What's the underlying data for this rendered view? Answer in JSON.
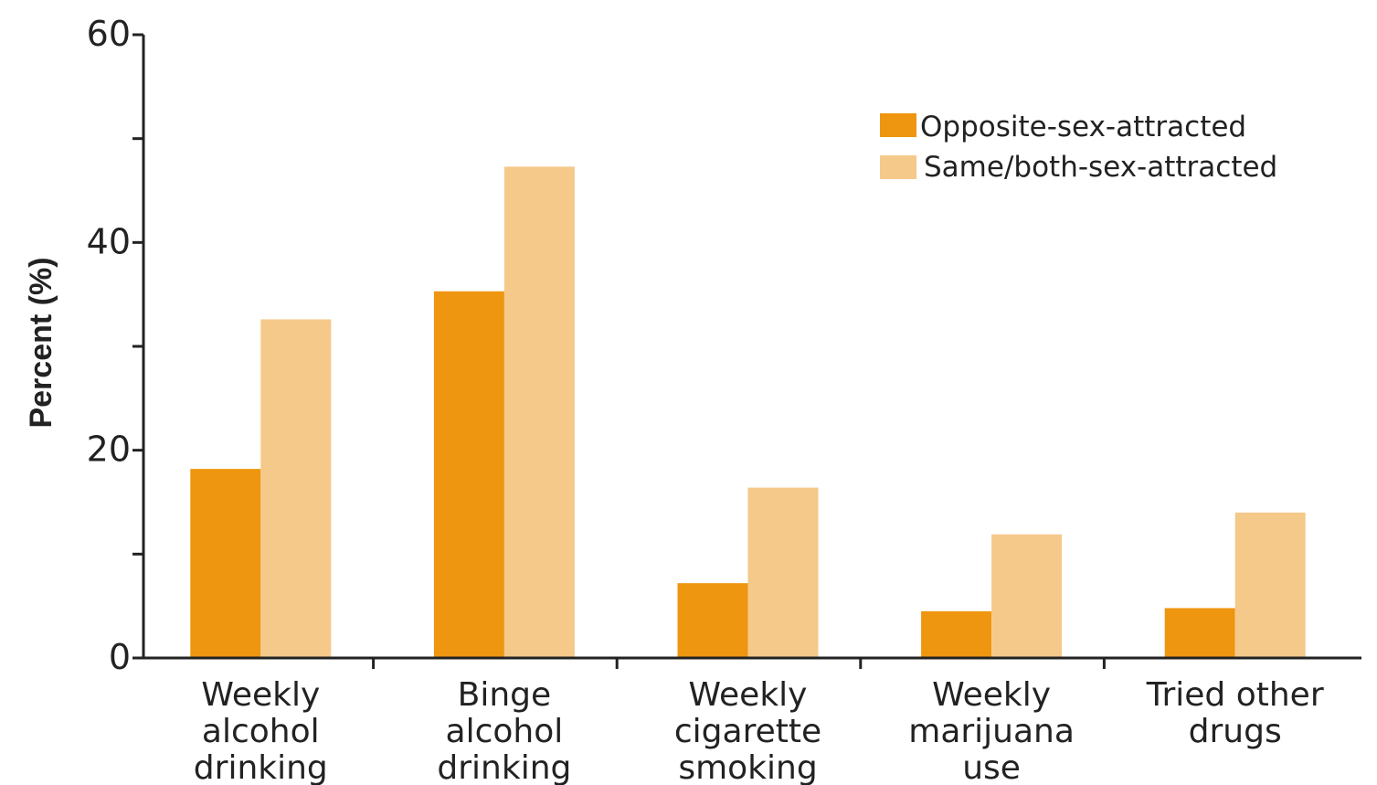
{
  "chart_data": {
    "type": "bar",
    "title": "",
    "xlabel": "",
    "ylabel": "Percent (%)",
    "ylim": [
      0,
      60
    ],
    "yticks": [
      0,
      20,
      40,
      60
    ],
    "ytick_labels": [
      "0",
      "20",
      "40",
      "60"
    ],
    "grid": false,
    "legend_position": "top-right",
    "categories": [
      [
        "Weekly",
        "alcohol",
        "drinking"
      ],
      [
        "Binge",
        "alcohol",
        "drinking"
      ],
      [
        "Weekly",
        "cigarette",
        "smoking"
      ],
      [
        "Weekly",
        "marijuana",
        "use"
      ],
      [
        "Tried other",
        "drugs"
      ]
    ],
    "series": [
      {
        "name": "Opposite-sex-attracted",
        "color": "#EE960F",
        "values": [
          18.2,
          35.3,
          7.2,
          4.5,
          4.8
        ]
      },
      {
        "name": "Same/both-sex-attracted",
        "color": "#F5C98A",
        "values": [
          32.6,
          47.3,
          16.4,
          11.9,
          14.0
        ]
      }
    ]
  }
}
